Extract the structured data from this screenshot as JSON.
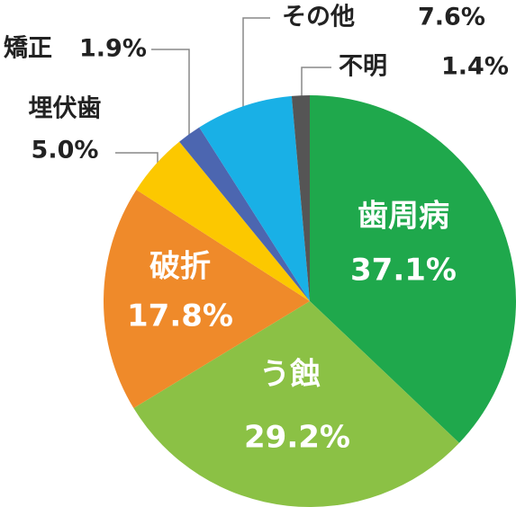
{
  "chart_data": {
    "type": "pie",
    "categories": [
      "歯周病",
      "う蝕",
      "破折",
      "埋伏歯",
      "矯正",
      "その他",
      "不明"
    ],
    "values": [
      37.1,
      29.2,
      17.8,
      5.0,
      1.9,
      7.6,
      1.4
    ],
    "value_labels": [
      "37.1%",
      "29.2%",
      "17.8%",
      "5.0%",
      "1.9%",
      "7.6%",
      "1.4%"
    ],
    "colors": [
      "#1fa84c",
      "#8bc145",
      "#ef8a2a",
      "#fcc800",
      "#4c66b0",
      "#19b0e6",
      "#555555"
    ]
  }
}
